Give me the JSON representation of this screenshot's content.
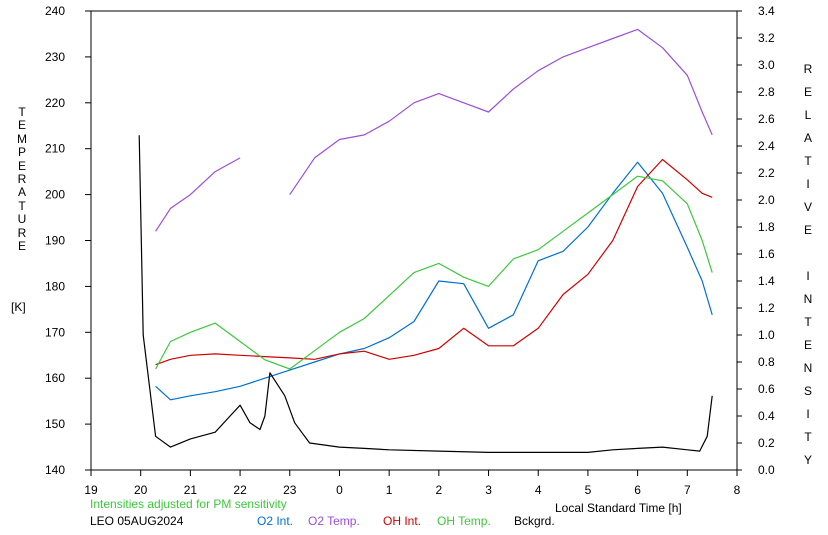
{
  "chart_data": {
    "type": "line",
    "x_unit": "Local Standard Time [h]",
    "xlabel": "Local Standard Time [h]",
    "x_ticks": [
      "19",
      "20",
      "21",
      "22",
      "23",
      "0",
      "1",
      "2",
      "3",
      "4",
      "5",
      "6",
      "7",
      "8"
    ],
    "xlim": [
      19,
      32
    ],
    "y_left_label": "TEMPERATURE",
    "y_left_unit": "[K]",
    "y_left_ticks": [
      "140",
      "150",
      "160",
      "170",
      "180",
      "190",
      "200",
      "210",
      "220",
      "230",
      "240"
    ],
    "y_left_lim": [
      140,
      240
    ],
    "y_right_label": "RELATIVE INTENSITY",
    "y_right_ticks": [
      "0.0",
      "0.2",
      "0.4",
      "0.6",
      "0.8",
      "1.0",
      "1.2",
      "1.4",
      "1.6",
      "1.8",
      "2.0",
      "2.2",
      "2.4",
      "2.6",
      "2.8",
      "3.0",
      "3.2",
      "3.4"
    ],
    "y_right_lim": [
      0,
      3.4
    ],
    "grid": false,
    "legend_position": "bottom",
    "series": [
      {
        "name": "O2 Int.",
        "color": "#0070d0",
        "axis": "right",
        "x": [
          20.3,
          20.6,
          21.0,
          21.5,
          22.0,
          22.5,
          23.0,
          23.5,
          24.0,
          24.5,
          25.0,
          25.5,
          26.0,
          26.5,
          27.0,
          27.5,
          28.0,
          28.5,
          29.0,
          29.5,
          30.0,
          30.5,
          31.0,
          31.3,
          31.5
        ],
        "y": [
          0.62,
          0.52,
          0.55,
          0.58,
          0.62,
          0.68,
          0.74,
          0.8,
          0.86,
          0.9,
          0.98,
          1.1,
          1.4,
          1.38,
          1.05,
          1.15,
          1.55,
          1.62,
          1.8,
          2.05,
          2.28,
          2.05,
          1.65,
          1.4,
          1.15
        ]
      },
      {
        "name": "O2 Temp.",
        "color": "#9b4fd8",
        "axis": "left",
        "x": [
          20.3,
          20.6,
          21.0,
          21.5,
          22.0,
          22.5,
          23.0,
          23.5,
          24.0,
          24.5,
          25.0,
          25.5,
          26.0,
          26.5,
          27.0,
          27.5,
          28.0,
          28.5,
          29.0,
          29.5,
          30.0,
          30.5,
          31.0,
          31.3,
          31.5
        ],
        "y": [
          192,
          197,
          200,
          205,
          208,
          null,
          200,
          208,
          212,
          213,
          216,
          220,
          222,
          220,
          218,
          223,
          227,
          230,
          232,
          234,
          236,
          232,
          226,
          218,
          213
        ]
      },
      {
        "name": "OH Int.",
        "color": "#d00000",
        "axis": "right",
        "x": [
          20.3,
          20.6,
          21.0,
          21.5,
          22.0,
          22.5,
          23.0,
          23.5,
          24.0,
          24.5,
          25.0,
          25.5,
          26.0,
          26.5,
          27.0,
          27.5,
          28.0,
          28.5,
          29.0,
          29.5,
          30.0,
          30.5,
          31.0,
          31.3,
          31.5
        ],
        "y": [
          0.78,
          0.82,
          0.85,
          0.86,
          0.85,
          0.84,
          0.83,
          0.82,
          0.86,
          0.88,
          0.82,
          0.85,
          0.9,
          1.05,
          0.92,
          0.92,
          1.05,
          1.3,
          1.45,
          1.7,
          2.1,
          2.3,
          2.15,
          2.05,
          2.02
        ]
      },
      {
        "name": "OH Temp.",
        "color": "#3cc83c",
        "axis": "left",
        "x": [
          20.3,
          20.6,
          21.0,
          21.5,
          22.0,
          22.5,
          23.0,
          23.5,
          24.0,
          24.5,
          25.0,
          25.5,
          26.0,
          26.5,
          27.0,
          27.5,
          28.0,
          28.5,
          29.0,
          29.5,
          30.0,
          30.5,
          31.0,
          31.3,
          31.5
        ],
        "y": [
          162,
          168,
          170,
          172,
          168,
          164,
          162,
          166,
          170,
          173,
          178,
          183,
          185,
          182,
          180,
          186,
          188,
          192,
          196,
          200,
          204,
          203,
          198,
          190,
          183
        ]
      },
      {
        "name": "Bckgrd.",
        "color": "#000000",
        "axis": "right",
        "x": [
          19.97,
          20.05,
          20.3,
          20.6,
          21.0,
          21.5,
          21.8,
          22.0,
          22.2,
          22.4,
          22.5,
          22.6,
          22.9,
          23.1,
          23.4,
          24.0,
          24.5,
          25.0,
          26.0,
          27.0,
          28.0,
          29.0,
          29.5,
          30.0,
          30.5,
          31.0,
          31.25,
          31.4,
          31.5
        ],
        "y": [
          2.48,
          1.0,
          0.25,
          0.17,
          0.23,
          0.28,
          0.4,
          0.48,
          0.35,
          0.3,
          0.4,
          0.72,
          0.55,
          0.35,
          0.2,
          0.17,
          0.16,
          0.15,
          0.14,
          0.13,
          0.13,
          0.13,
          0.15,
          0.16,
          0.17,
          0.15,
          0.14,
          0.25,
          0.55
        ]
      }
    ]
  },
  "footer": {
    "note": "Intensities adjusted for PM sensitivity",
    "note_color": "#3cc83c",
    "station": "LEO 05AUG2024"
  }
}
